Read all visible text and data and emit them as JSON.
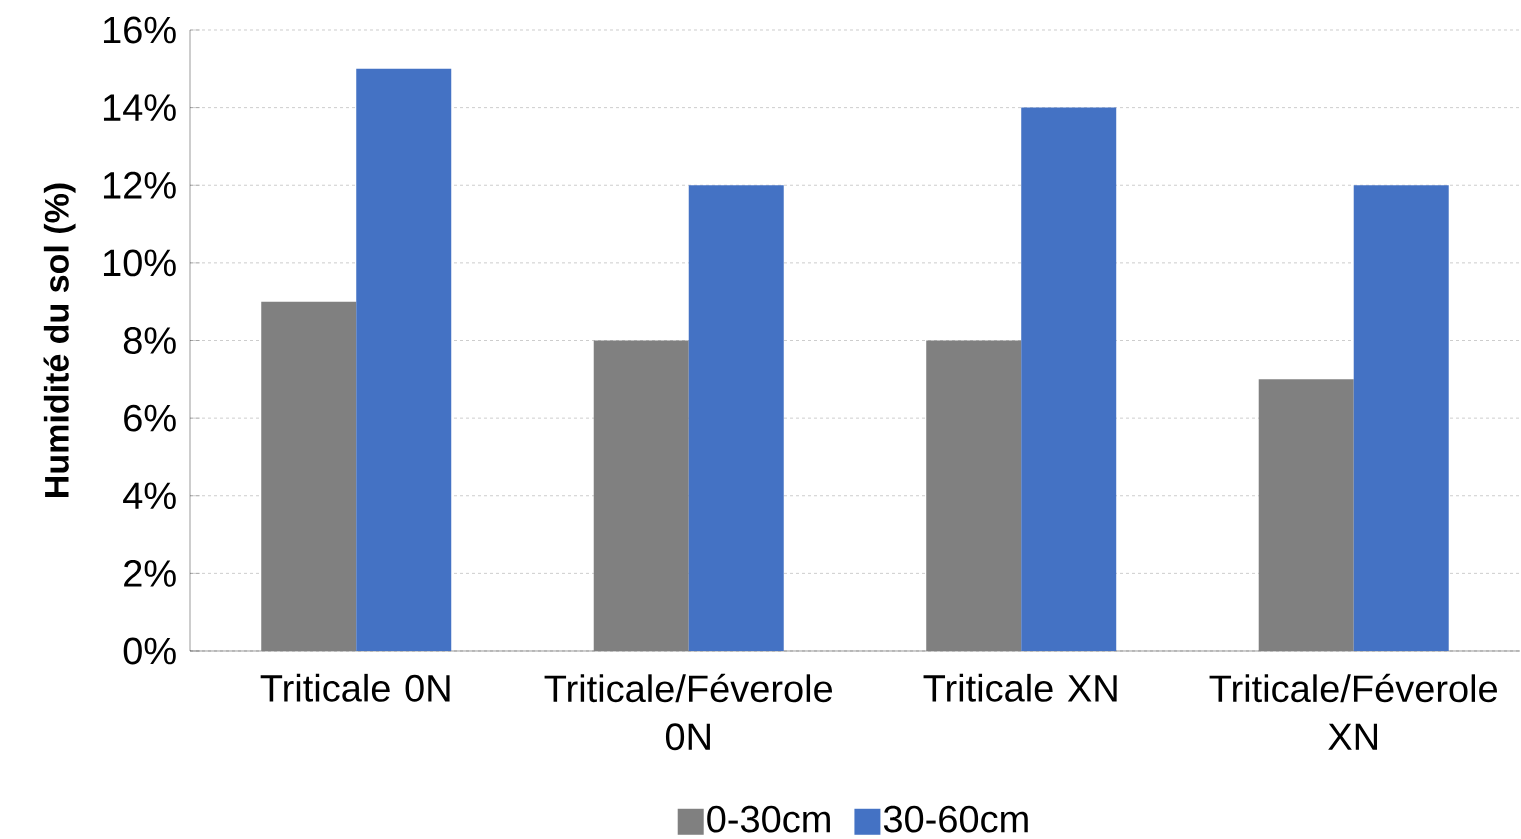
{
  "chart_data": {
    "type": "bar",
    "ylabel": "Humidité du sol (%)",
    "categories": [
      "Triticale 0N",
      "Triticale/Féverole 0N",
      "Triticale XN",
      "Triticale/Féverole XN"
    ],
    "series": [
      {
        "name": "0-30cm",
        "color": "#808080",
        "values": [
          9,
          8,
          8,
          7
        ]
      },
      {
        "name": "30-60cm",
        "color": "#4472c4",
        "values": [
          15,
          12,
          14,
          12
        ]
      }
    ],
    "ylim": [
      0,
      16
    ],
    "yticks": [
      {
        "value": 0,
        "label": "0%"
      },
      {
        "value": 2,
        "label": "2%"
      },
      {
        "value": 4,
        "label": "4%"
      },
      {
        "value": 6,
        "label": "6%"
      },
      {
        "value": 8,
        "label": "8%"
      },
      {
        "value": 10,
        "label": "10%"
      },
      {
        "value": 12,
        "label": "12%"
      },
      {
        "value": 14,
        "label": "14%"
      },
      {
        "value": 16,
        "label": "16%"
      }
    ],
    "grid": "y",
    "legend": "bottom"
  }
}
